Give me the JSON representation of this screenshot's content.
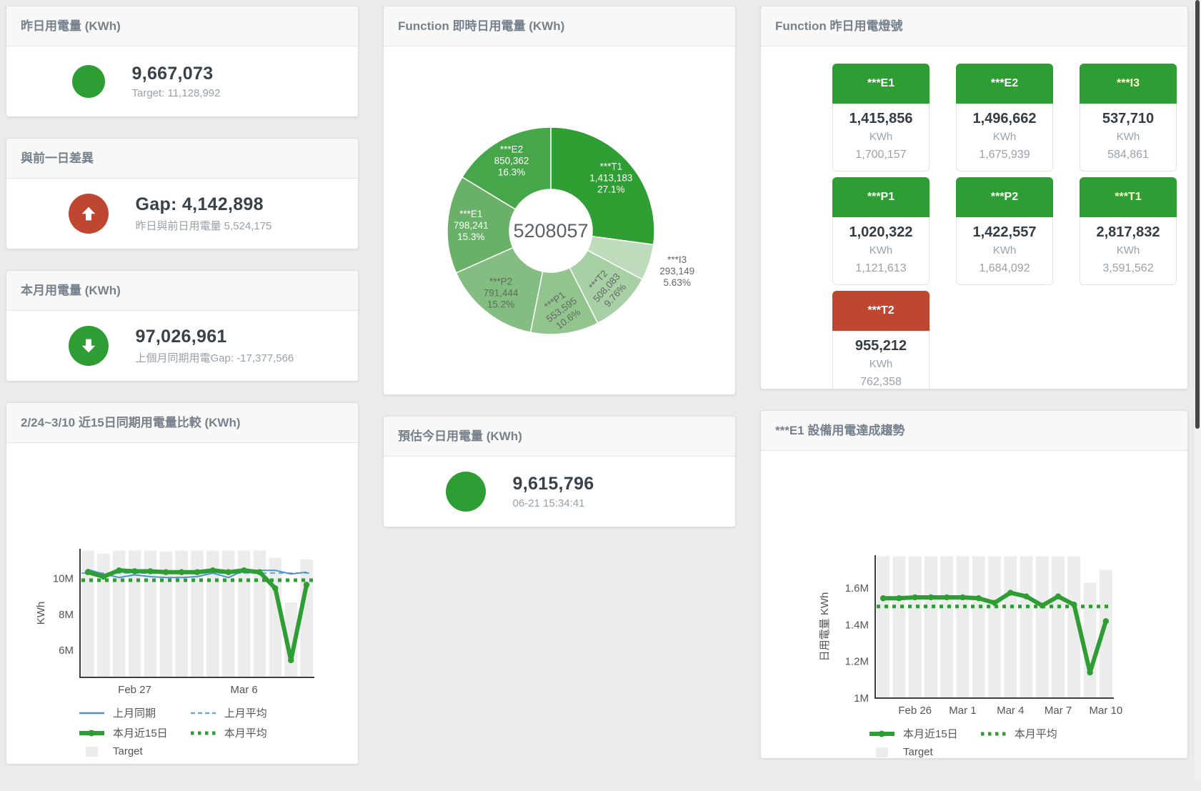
{
  "panels": {
    "yesterday": {
      "title": "昨日用電量 (KWh)",
      "value": "9,667,073",
      "subtext": "Target: 11,128,992"
    },
    "day_gap": {
      "title": "與前一日差異",
      "value": "Gap: 4,142,898",
      "subtext": "昨日與前日用電量 5,524,175"
    },
    "month": {
      "title": "本月用電量 (KWh)",
      "value": "97,026,961",
      "subtext": "上個月同期用電Gap: -17,377,566"
    },
    "realtime": {
      "title": "Function 即時日用電量 (KWh)"
    },
    "lights": {
      "title": "Function 昨日用電燈號",
      "unit": "KWh"
    },
    "compare": {
      "title": "2/24~3/10 近15日同期用電量比較 (KWh)"
    },
    "forecast": {
      "title": "預估今日用電量 (KWh)",
      "value": "9,615,796",
      "subtext": "06-21 15:34:41"
    },
    "e1_trend": {
      "title": "***E1 設備用電達成趨勢"
    }
  },
  "lights_items": [
    {
      "label": "***E1",
      "value": "1,415,856",
      "secondary": "1,700,157",
      "header_color": "#2e9d33",
      "label_color": "#ffffff"
    },
    {
      "label": "***E2",
      "value": "1,496,662",
      "secondary": "1,675,939",
      "header_color": "#2e9d33",
      "label_color": "#ffffff"
    },
    {
      "label": "***I3",
      "value": "537,710",
      "secondary": "584,861",
      "header_color": "#2e9d33",
      "label_color": "#fbffc8"
    },
    {
      "label": "***P1",
      "value": "1,020,322",
      "secondary": "1,121,613",
      "header_color": "#2e9d33",
      "label_color": "#ffffff"
    },
    {
      "label": "***P2",
      "value": "1,422,557",
      "secondary": "1,684,092",
      "header_color": "#2e9d33",
      "label_color": "#ffffff"
    },
    {
      "label": "***T1",
      "value": "2,817,832",
      "secondary": "3,591,562",
      "header_color": "#2e9d33",
      "label_color": "#fbffc8"
    },
    {
      "label": "***T2",
      "value": "955,212",
      "secondary": "762,358",
      "header_color": "#bf4630",
      "label_color": "#ffffff"
    }
  ],
  "chart_data": [
    {
      "type": "pie",
      "title": "Function 即時日用電量 (KWh)",
      "center_label": "5208057",
      "slices": [
        {
          "name": "***T1",
          "value": 1413183,
          "value_text": "1,413,183",
          "pct": "27.1%",
          "color": "#2f9e33",
          "text": "#ffffff"
        },
        {
          "name": "***I3",
          "value": 293149,
          "value_text": "293,149",
          "pct": "5.63%",
          "color": "#bedcbb",
          "text": "#666666",
          "outside": true
        },
        {
          "name": "***T2",
          "value": 508083,
          "value_text": "508,083",
          "pct": "9.76%",
          "color": "#a7d0a4",
          "text": "#666666",
          "rotate": -48
        },
        {
          "name": "***P1",
          "value": 553595,
          "value_text": "553,595",
          "pct": "10.6%",
          "color": "#92c58e",
          "text": "#666666",
          "rotate": -36
        },
        {
          "name": "***P2",
          "value": 791444,
          "value_text": "791,444",
          "pct": "15.2%",
          "color": "#84bd81",
          "text": "#5f6b5f"
        },
        {
          "name": "***E1",
          "value": 798241,
          "value_text": "798,241",
          "pct": "15.3%",
          "color": "#69b168",
          "text": "#ffffff"
        },
        {
          "name": "***E2",
          "value": 850362,
          "value_text": "850,362",
          "pct": "16.3%",
          "color": "#46a74a",
          "text": "#ffffff"
        }
      ]
    },
    {
      "type": "line",
      "title": "2/24~3/10 近15日同期用電量比較 (KWh)",
      "ylabel": "KWh",
      "ylim": [
        4.5,
        11.65
      ],
      "yticks": [
        {
          "v": 6,
          "label": "6M"
        },
        {
          "v": 8,
          "label": "8M"
        },
        {
          "v": 10,
          "label": "10M"
        }
      ],
      "xticks": [
        {
          "i": 3,
          "label": "Feb 27"
        },
        {
          "i": 10,
          "label": "Mar 6"
        }
      ],
      "target": {
        "name": "Target",
        "color": "#ececec",
        "values": [
          11.55,
          11.38,
          11.55,
          11.55,
          11.55,
          11.5,
          11.55,
          11.55,
          11.55,
          11.55,
          11.55,
          11.55,
          11.15,
          8.66,
          11.05
        ]
      },
      "series": [
        {
          "name": "上月同期",
          "color": "#4f94c9",
          "width": 2,
          "values": [
            10.5,
            10.25,
            10.05,
            10.2,
            10.1,
            10.05,
            10.05,
            10.1,
            10.3,
            10.05,
            10.45,
            10.45,
            10.45,
            10.25,
            10.35
          ]
        },
        {
          "name": "本月近15日",
          "color": "#2e9d33",
          "width": 6,
          "markers": true,
          "values": [
            10.35,
            10.1,
            10.45,
            10.4,
            10.4,
            10.35,
            10.35,
            10.35,
            10.45,
            10.35,
            10.45,
            10.35,
            9.45,
            5.45,
            9.65
          ]
        }
      ],
      "avgs": [
        {
          "name": "上月平均",
          "color": "#6ea9d4",
          "value": 10.3,
          "style": "dashed"
        },
        {
          "name": "本月平均",
          "color": "#2e9d33",
          "value": 9.9,
          "style": "dotted"
        }
      ],
      "legend": [
        {
          "label": "上月同期",
          "type": "line",
          "color": "#4f94c9"
        },
        {
          "label": "上月平均",
          "type": "dashed",
          "color": "#6ea9d4"
        },
        {
          "label": "本月近15日",
          "type": "thick",
          "color": "#2e9d33"
        },
        {
          "label": "本月平均",
          "type": "dotted",
          "color": "#2e9d33"
        },
        {
          "label": "Target",
          "type": "swatch",
          "color": "#ececec"
        }
      ]
    },
    {
      "type": "line",
      "title": "***E1 設備用電達成趨勢",
      "ylabel": "日用電量 KWh",
      "ylim": [
        1.0,
        1.78
      ],
      "yticks": [
        {
          "v": 1,
          "label": "1M"
        },
        {
          "v": 1.2,
          "label": "1.2M"
        },
        {
          "v": 1.4,
          "label": "1.4M"
        },
        {
          "v": 1.6,
          "label": "1.6M"
        }
      ],
      "xticks": [
        {
          "i": 2,
          "label": "Feb 26"
        },
        {
          "i": 5,
          "label": "Mar 1"
        },
        {
          "i": 8,
          "label": "Mar 4"
        },
        {
          "i": 11,
          "label": "Mar 7"
        },
        {
          "i": 14,
          "label": "Mar 10"
        }
      ],
      "target": {
        "name": "Target",
        "color": "#ececec",
        "values": [
          1.775,
          1.775,
          1.775,
          1.775,
          1.775,
          1.775,
          1.775,
          1.775,
          1.775,
          1.775,
          1.775,
          1.775,
          1.775,
          1.63,
          1.7
        ]
      },
      "series": [
        {
          "name": "本月近15日",
          "color": "#2e9d33",
          "width": 6,
          "markers": true,
          "values": [
            1.545,
            1.545,
            1.55,
            1.55,
            1.55,
            1.55,
            1.545,
            1.52,
            1.575,
            1.555,
            1.505,
            1.555,
            1.51,
            1.14,
            1.42
          ]
        }
      ],
      "avgs": [
        {
          "name": "本月平均",
          "color": "#2e9d33",
          "value": 1.5,
          "style": "dotted"
        }
      ],
      "legend": [
        {
          "label": "本月近15日",
          "type": "thick",
          "color": "#2e9d33"
        },
        {
          "label": "本月平均",
          "type": "dotted",
          "color": "#2e9d33"
        },
        {
          "label": "Target",
          "type": "swatch",
          "color": "#ececec"
        }
      ]
    }
  ]
}
